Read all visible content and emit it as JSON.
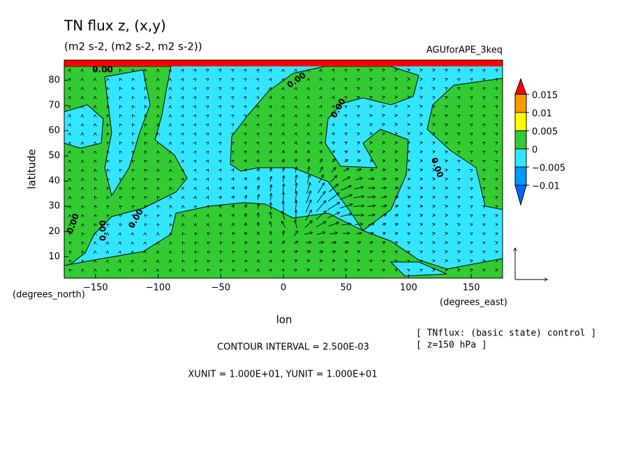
{
  "chart_data": {
    "type": "contour",
    "title": "TN flux z, (x,y)",
    "subtitle": "(m2 s-2, (m2 s-2, m2 s-2))",
    "dataset": "AGUforAPE_3keq",
    "x_label": "lon",
    "y_label": "latitude",
    "x_unit": "(degrees_east)",
    "y_unit": "(degrees_north)",
    "xlim": [
      -175,
      175
    ],
    "ylim": [
      1.5,
      88
    ],
    "xticks": [
      {
        "value": -150,
        "label": "−150"
      },
      {
        "value": -100,
        "label": "−100"
      },
      {
        "value": -50,
        "label": "−50"
      },
      0,
      50,
      100,
      150
    ],
    "yticks": [
      10,
      20,
      30,
      40,
      50,
      60,
      70,
      80
    ],
    "levels": [
      {
        "value": -0.01,
        "label": "−0.01"
      },
      {
        "value": -0.005,
        "label": "−0.005"
      },
      0,
      0.005,
      0.01,
      0.015
    ],
    "colors": [
      "#0066ff",
      "#0099ff",
      "#33e6ff",
      "#33cc33",
      "#ffff00",
      "#ff9900",
      "#ff0000"
    ],
    "contour_labels": [
      "0.00",
      "0.00",
      "0.00",
      "0.00",
      "0.00",
      "0.00",
      "0.00"
    ],
    "contour_interval": "CONTOUR INTERVAL = 2.500E-03",
    "units_note": "XUNIT = 1.000E+01, YUNIT = 1.000E+01",
    "notes": [
      "[ TNflux: (basic state) control ]",
      "[ z=150 hPa ]"
    ]
  }
}
